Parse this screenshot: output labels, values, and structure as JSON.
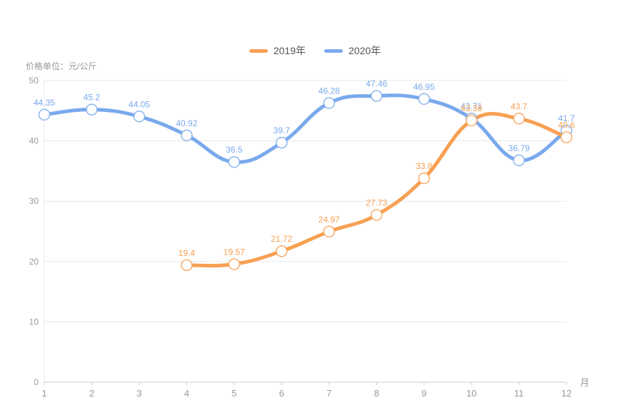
{
  "page": {
    "background": "#ffffff"
  },
  "chart_data": {
    "type": "line",
    "title": "",
    "unit_label": "价格单位：元/公斤",
    "xlabel": "月",
    "ylabel": "",
    "x_categories": [
      "1",
      "2",
      "3",
      "4",
      "5",
      "6",
      "7",
      "8",
      "9",
      "10",
      "11",
      "12"
    ],
    "y_ticks": [
      0,
      10,
      20,
      30,
      40,
      50
    ],
    "ylim": [
      0,
      50
    ],
    "grid": true,
    "smooth": true,
    "legend_position": "top-center",
    "series": [
      {
        "name": "2019年",
        "color": "#F7A052",
        "x": [
          4,
          5,
          6,
          7,
          8,
          9,
          10,
          11,
          12
        ],
        "values": [
          19.4,
          19.57,
          21.72,
          24.97,
          27.73,
          33.8,
          43.38,
          43.7,
          40.6
        ]
      },
      {
        "name": "2020年",
        "color": "#7AA9EC",
        "x": [
          1,
          2,
          3,
          4,
          5,
          6,
          7,
          8,
          9,
          10,
          11,
          12
        ],
        "values": [
          44.35,
          45.2,
          44.05,
          40.92,
          36.5,
          39.7,
          46.28,
          47.46,
          46.95,
          43.71,
          36.79,
          41.7
        ]
      }
    ],
    "colors": {
      "axis_text": "#999999",
      "grid_line": "#e8e8e8",
      "axis_line": "#cccccc",
      "legend_text": "#555555",
      "marker_fill": "#ffffff"
    }
  }
}
